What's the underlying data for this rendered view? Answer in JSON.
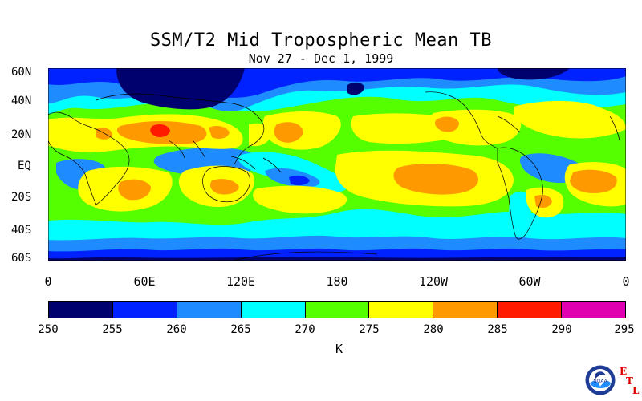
{
  "title": "SSM/T2 Mid Tropospheric Mean TB",
  "subtitle": "Nov 27 - Dec 1, 1999",
  "y_axis_ticks": [
    "60N",
    "40N",
    "20N",
    "EQ",
    "20S",
    "40S",
    "60S"
  ],
  "x_axis_ticks": [
    "0",
    "60E",
    "120E",
    "180",
    "120W",
    "60W",
    "0"
  ],
  "colorbar": {
    "tick_labels": [
      "250",
      "255",
      "260",
      "265",
      "270",
      "275",
      "280",
      "285",
      "290",
      "295"
    ],
    "unit": "K",
    "colors": [
      "#00006e",
      "#0022ff",
      "#1e8cff",
      "#00ffff",
      "#55ff00",
      "#ffff00",
      "#ff9900",
      "#ff1a00",
      "#e000b0"
    ]
  },
  "logo": {
    "letters": [
      "E",
      "T",
      "L"
    ],
    "badge_text": "NOAA"
  }
}
